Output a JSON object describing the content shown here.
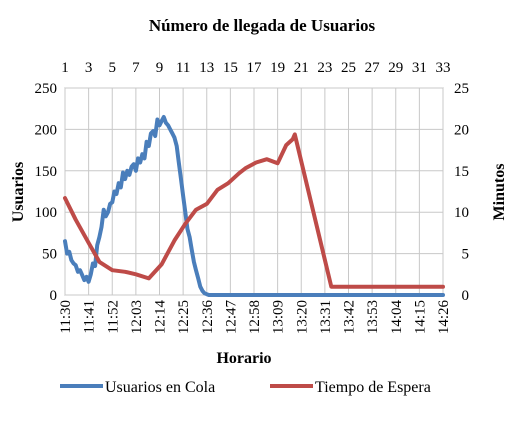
{
  "chart_data": {
    "type": "line",
    "title": "Número de llegada de Usuarios",
    "xlabel": "Horario",
    "ylabel_left": "Usuarios",
    "ylabel_right": "Minutos",
    "ylim_left": [
      0,
      250
    ],
    "ylim_right": [
      0,
      25
    ],
    "yticks_left": [
      0,
      50,
      100,
      150,
      200,
      250
    ],
    "yticks_right": [
      0,
      5,
      10,
      15,
      20,
      25
    ],
    "grid": true,
    "legend_position": "bottom",
    "x_bottom_ticks": [
      "11:30",
      "11:41",
      "11:52",
      "12:03",
      "12:14",
      "12:25",
      "12:36",
      "12:47",
      "12:58",
      "13:09",
      "13:20",
      "13:31",
      "13:42",
      "13:53",
      "14:04",
      "14:15",
      "14:26"
    ],
    "x_top_ticks": [
      "1",
      "3",
      "5",
      "7",
      "9",
      "11",
      "13",
      "15",
      "17",
      "19",
      "21",
      "23",
      "25",
      "27",
      "29",
      "31",
      "33"
    ],
    "series": [
      {
        "name": "Usuarios en Cola",
        "axis": "left",
        "color": "#4a7ebb",
        "x_minutes": [
          0,
          1,
          2,
          3,
          4,
          5,
          6,
          7,
          8,
          9,
          10,
          11,
          12,
          13,
          14,
          15,
          16,
          17,
          18,
          19,
          20,
          21,
          22,
          23,
          24,
          25,
          26,
          27,
          28,
          29,
          30,
          31,
          32,
          33,
          34,
          35,
          36,
          37,
          38,
          39,
          40,
          41,
          42,
          43,
          44,
          45,
          46,
          47,
          48,
          49,
          50,
          51,
          52,
          53,
          54,
          55,
          56,
          57,
          58,
          59,
          60,
          61,
          62,
          63,
          64,
          65,
          66,
          67,
          68,
          69,
          70,
          71,
          72,
          73,
          74,
          75,
          76,
          77,
          78,
          79,
          80,
          81,
          82,
          83,
          84,
          85,
          86,
          87,
          88,
          90,
          92,
          95,
          100,
          110,
          120,
          130,
          140,
          150,
          160,
          170,
          176
        ],
        "values": [
          65,
          50,
          52,
          42,
          38,
          36,
          28,
          30,
          24,
          18,
          22,
          16,
          25,
          38,
          35,
          60,
          70,
          82,
          103,
          95,
          100,
          110,
          112,
          125,
          122,
          135,
          130,
          148,
          140,
          150,
          145,
          155,
          158,
          150,
          165,
          160,
          170,
          165,
          185,
          180,
          195,
          198,
          192,
          212,
          205,
          210,
          215,
          208,
          205,
          200,
          195,
          190,
          180,
          160,
          140,
          120,
          100,
          80,
          70,
          55,
          40,
          30,
          20,
          10,
          5,
          2,
          1,
          0,
          0,
          0,
          0,
          0,
          0,
          0,
          0,
          0,
          0,
          0,
          0,
          0,
          0,
          0,
          0,
          0,
          0,
          0,
          0,
          0,
          0,
          0,
          0,
          0,
          0,
          0,
          0,
          0,
          0,
          0,
          0,
          0,
          0
        ]
      },
      {
        "name": "Tiempo de Espera",
        "axis": "right",
        "color": "#be4b48",
        "x_minutes": [
          0,
          5,
          11,
          16,
          22,
          28,
          33,
          39,
          45,
          51,
          56,
          61,
          66,
          71,
          76,
          81,
          84,
          89,
          94,
          99,
          103,
          106,
          107,
          124,
          140,
          155,
          165,
          176
        ],
        "values": [
          11.7,
          9.1,
          6.3,
          4.0,
          3.0,
          2.8,
          2.5,
          2.0,
          3.7,
          6.6,
          8.6,
          10.3,
          11.0,
          12.7,
          13.5,
          14.7,
          15.3,
          16.0,
          16.4,
          15.9,
          18.1,
          18.8,
          19.4,
          1.0,
          1.0,
          1.0,
          1.0,
          1.0
        ]
      }
    ]
  }
}
